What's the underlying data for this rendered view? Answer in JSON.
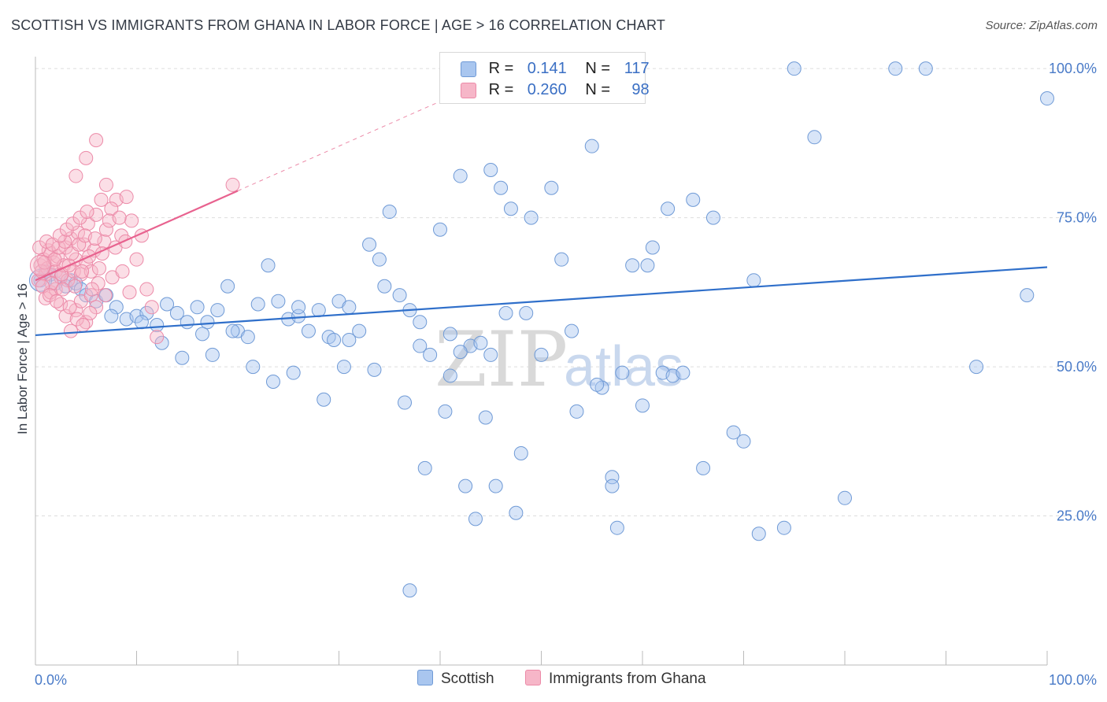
{
  "title": "SCOTTISH VS IMMIGRANTS FROM GHANA IN LABOR FORCE | AGE > 16 CORRELATION CHART",
  "source": "Source: ZipAtlas.com",
  "watermark": {
    "zip": "ZIP",
    "atlas": "atlas"
  },
  "legend_stats": {
    "scottish": {
      "r_label": "R =",
      "r_value": "0.141",
      "n_label": "N =",
      "n_value": "117"
    },
    "ghana": {
      "r_label": "R =",
      "r_value": "0.260",
      "n_label": "N =",
      "n_value": "98"
    }
  },
  "colors": {
    "scottish_fill": "#a9c6ef",
    "scottish_stroke": "#6f9ad6",
    "scottish_line": "#2f6fca",
    "ghana_fill": "#f6b6c8",
    "ghana_stroke": "#ec8aa8",
    "ghana_line": "#e8628f",
    "tick_text": "#4a7bc8",
    "grid": "#dddddd"
  },
  "chart_data": {
    "type": "scatter",
    "title": "SCOTTISH VS IMMIGRANTS FROM GHANA IN LABOR FORCE | AGE > 16 CORRELATION CHART",
    "xlabel": "",
    "ylabel": "In Labor Force | Age > 16",
    "xlim": [
      0,
      100
    ],
    "ylim": [
      0,
      102
    ],
    "x_tick_labels": [
      "0.0%",
      "100.0%"
    ],
    "y_ticks": [
      25,
      50,
      75,
      100
    ],
    "y_tick_labels": [
      "25.0%",
      "50.0%",
      "75.0%",
      "100.0%"
    ],
    "grid": "horizontal dashed",
    "legend": "top-center and bottom",
    "series": [
      {
        "name": "Scottish",
        "trend": {
          "x": [
            0,
            100
          ],
          "y": [
            55.3,
            66.7
          ]
        },
        "points": [
          [
            0.5,
            64.5
          ],
          [
            1.0,
            66.0
          ],
          [
            1.5,
            65.5
          ],
          [
            2.0,
            64.0
          ],
          [
            2.5,
            65.0
          ],
          [
            3.0,
            63.5
          ],
          [
            3.5,
            64.5
          ],
          [
            4.0,
            64.0
          ],
          [
            4.5,
            63.0
          ],
          [
            5.0,
            62.0
          ],
          [
            6.0,
            61.0
          ],
          [
            7.0,
            62.0
          ],
          [
            8.0,
            60.0
          ],
          [
            9.0,
            58.0
          ],
          [
            10.0,
            58.5
          ],
          [
            11.0,
            59.0
          ],
          [
            12.0,
            57.0
          ],
          [
            13.0,
            60.5
          ],
          [
            14.0,
            59.0
          ],
          [
            15.0,
            57.5
          ],
          [
            16.0,
            60.0
          ],
          [
            17.0,
            57.5
          ],
          [
            18.0,
            59.5
          ],
          [
            19.0,
            63.5
          ],
          [
            20.0,
            56.0
          ],
          [
            21.0,
            55.0
          ],
          [
            22.0,
            60.5
          ],
          [
            23.0,
            67.0
          ],
          [
            24.0,
            61.0
          ],
          [
            25.0,
            58.0
          ],
          [
            26.0,
            58.5
          ],
          [
            27.0,
            56.0
          ],
          [
            28.0,
            59.5
          ],
          [
            29.0,
            55.0
          ],
          [
            30.0,
            61.0
          ],
          [
            31.0,
            60.0
          ],
          [
            32.0,
            56.0
          ],
          [
            33.0,
            70.5
          ],
          [
            34.0,
            68.0
          ],
          [
            35.0,
            76.0
          ],
          [
            36.0,
            62.0
          ],
          [
            37.0,
            59.5
          ],
          [
            38.0,
            53.5
          ],
          [
            39.0,
            52.0
          ],
          [
            40.0,
            73.0
          ],
          [
            41.0,
            55.5
          ],
          [
            42.0,
            82.0
          ],
          [
            43.0,
            53.5
          ],
          [
            44.0,
            54.0
          ],
          [
            45.0,
            83.0
          ],
          [
            46.0,
            80.0
          ],
          [
            47.0,
            76.5
          ],
          [
            49.0,
            75.0
          ],
          [
            50.0,
            52.0
          ],
          [
            51.0,
            80.0
          ],
          [
            52.0,
            68.0
          ],
          [
            53.0,
            56.0
          ],
          [
            55.0,
            87.0
          ],
          [
            56.0,
            46.5
          ],
          [
            57.0,
            31.5
          ],
          [
            58.0,
            49.0
          ],
          [
            59.0,
            67.0
          ],
          [
            60.0,
            43.5
          ],
          [
            61.0,
            70.0
          ],
          [
            62.0,
            49.0
          ],
          [
            63.0,
            48.5
          ],
          [
            65.0,
            78.0
          ],
          [
            66.0,
            33.0
          ],
          [
            67.0,
            75.0
          ],
          [
            69.0,
            39.0
          ],
          [
            70.0,
            37.5
          ],
          [
            71.0,
            64.5
          ],
          [
            74.0,
            23.0
          ],
          [
            77.0,
            88.5
          ],
          [
            71.5,
            22.0
          ],
          [
            75.0,
            100.0
          ],
          [
            80.0,
            28.0
          ],
          [
            85.0,
            100.0
          ],
          [
            88.0,
            100.0
          ],
          [
            93.0,
            50.0
          ],
          [
            98.0,
            62.0
          ],
          [
            100.0,
            95.0
          ],
          [
            30.5,
            50.0
          ],
          [
            33.5,
            49.5
          ],
          [
            31.0,
            54.5
          ],
          [
            23.5,
            47.5
          ],
          [
            25.5,
            49.0
          ],
          [
            28.5,
            44.5
          ],
          [
            36.5,
            44.0
          ],
          [
            40.5,
            42.5
          ],
          [
            44.5,
            41.5
          ],
          [
            48.0,
            35.5
          ],
          [
            42.5,
            30.0
          ],
          [
            45.5,
            30.0
          ],
          [
            41.0,
            48.5
          ],
          [
            46.5,
            59.0
          ],
          [
            48.5,
            59.0
          ],
          [
            38.5,
            33.0
          ],
          [
            37.0,
            12.5
          ],
          [
            43.5,
            24.5
          ],
          [
            47.5,
            25.5
          ],
          [
            45.0,
            52.0
          ],
          [
            53.5,
            42.5
          ],
          [
            55.5,
            47.0
          ],
          [
            57.5,
            23.0
          ],
          [
            62.5,
            76.5
          ],
          [
            60.5,
            67.0
          ],
          [
            64.0,
            49.0
          ],
          [
            14.5,
            51.5
          ],
          [
            16.5,
            55.5
          ],
          [
            19.5,
            56.0
          ],
          [
            21.5,
            50.0
          ],
          [
            10.5,
            57.5
          ],
          [
            12.5,
            54.0
          ],
          [
            26.0,
            60.0
          ],
          [
            29.5,
            54.5
          ],
          [
            34.5,
            63.5
          ],
          [
            38.0,
            57.5
          ],
          [
            42.0,
            52.5
          ],
          [
            57.0,
            30.0
          ],
          [
            17.5,
            52.0
          ],
          [
            7.5,
            58.5
          ]
        ]
      },
      {
        "name": "Immigrants from Ghana",
        "trend": {
          "x": [
            0,
            20
          ],
          "y": [
            64.5,
            79.5
          ]
        },
        "points": [
          [
            0.5,
            67.0
          ],
          [
            0.8,
            68.0
          ],
          [
            1.0,
            65.5
          ],
          [
            1.2,
            66.5
          ],
          [
            1.5,
            69.0
          ],
          [
            1.8,
            67.5
          ],
          [
            2.0,
            66.0
          ],
          [
            2.2,
            68.5
          ],
          [
            2.5,
            65.0
          ],
          [
            2.8,
            67.0
          ],
          [
            3.0,
            70.0
          ],
          [
            3.2,
            64.5
          ],
          [
            3.5,
            71.5
          ],
          [
            3.8,
            66.0
          ],
          [
            4.0,
            68.0
          ],
          [
            4.2,
            72.5
          ],
          [
            4.5,
            65.5
          ],
          [
            4.8,
            70.5
          ],
          [
            5.0,
            67.5
          ],
          [
            5.2,
            74.0
          ],
          [
            5.5,
            66.0
          ],
          [
            5.8,
            69.5
          ],
          [
            6.0,
            75.5
          ],
          [
            6.2,
            64.0
          ],
          [
            6.5,
            78.0
          ],
          [
            6.8,
            71.0
          ],
          [
            7.0,
            73.0
          ],
          [
            1.0,
            61.5
          ],
          [
            1.5,
            62.5
          ],
          [
            2.0,
            63.0
          ],
          [
            2.5,
            60.5
          ],
          [
            3.0,
            58.5
          ],
          [
            3.5,
            56.0
          ],
          [
            4.0,
            59.5
          ],
          [
            4.5,
            61.0
          ],
          [
            5.0,
            57.5
          ],
          [
            5.5,
            62.0
          ],
          [
            6.0,
            60.0
          ],
          [
            4.0,
            82.0
          ],
          [
            5.0,
            85.0
          ],
          [
            6.0,
            88.0
          ],
          [
            7.0,
            80.5
          ],
          [
            8.0,
            78.0
          ],
          [
            9.0,
            78.5
          ],
          [
            10.0,
            68.0
          ],
          [
            11.0,
            63.0
          ],
          [
            12.0,
            55.0
          ],
          [
            9.5,
            74.5
          ],
          [
            8.5,
            72.0
          ],
          [
            7.5,
            76.5
          ],
          [
            19.5,
            80.5
          ],
          [
            0.3,
            64.5
          ],
          [
            0.6,
            66.0
          ],
          [
            0.9,
            67.5
          ],
          [
            1.3,
            69.5
          ],
          [
            1.6,
            64.0
          ],
          [
            1.9,
            68.0
          ],
          [
            2.3,
            70.0
          ],
          [
            2.6,
            65.5
          ],
          [
            2.9,
            71.0
          ],
          [
            3.3,
            67.0
          ],
          [
            3.6,
            69.0
          ],
          [
            3.9,
            63.5
          ],
          [
            4.3,
            70.5
          ],
          [
            4.6,
            66.0
          ],
          [
            4.9,
            72.0
          ],
          [
            5.3,
            68.5
          ],
          [
            5.6,
            63.0
          ],
          [
            5.9,
            71.5
          ],
          [
            6.3,
            66.5
          ],
          [
            6.6,
            69.0
          ],
          [
            6.9,
            62.0
          ],
          [
            7.3,
            74.5
          ],
          [
            7.6,
            65.0
          ],
          [
            7.9,
            70.0
          ],
          [
            8.3,
            75.0
          ],
          [
            8.6,
            66.0
          ],
          [
            8.9,
            71.0
          ],
          [
            9.3,
            62.5
          ],
          [
            10.5,
            72.0
          ],
          [
            11.5,
            60.0
          ],
          [
            0.4,
            70.0
          ],
          [
            0.7,
            63.5
          ],
          [
            1.1,
            71.0
          ],
          [
            1.4,
            62.0
          ],
          [
            1.7,
            70.5
          ],
          [
            2.1,
            61.0
          ],
          [
            2.4,
            72.0
          ],
          [
            2.7,
            63.0
          ],
          [
            3.1,
            73.0
          ],
          [
            3.4,
            60.0
          ],
          [
            3.7,
            74.0
          ],
          [
            4.1,
            58.0
          ],
          [
            4.4,
            75.0
          ],
          [
            4.7,
            57.0
          ],
          [
            5.1,
            76.0
          ],
          [
            5.4,
            59.0
          ]
        ]
      }
    ]
  },
  "bottom_legend": {
    "scottish": "Scottish",
    "ghana": "Immigrants from Ghana"
  }
}
